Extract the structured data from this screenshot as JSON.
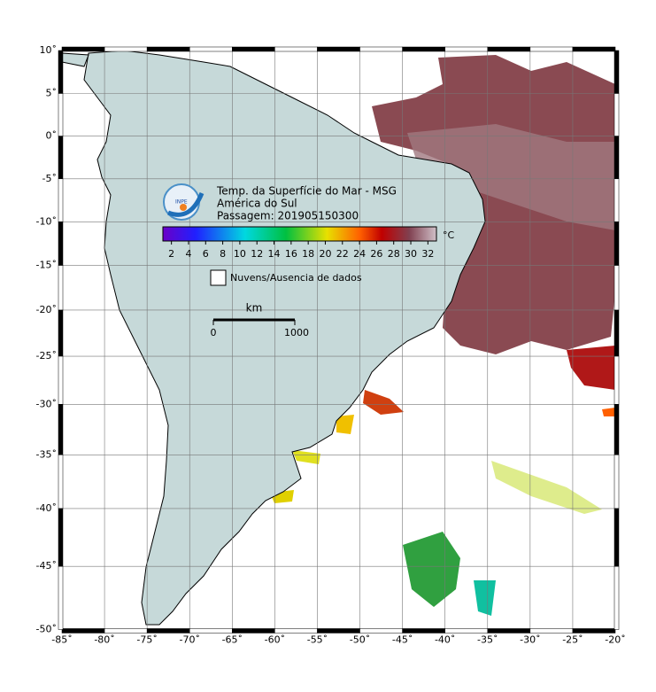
{
  "map": {
    "lonlim": [
      -85,
      -20
    ],
    "latlim": [
      -50,
      10
    ],
    "grid": true,
    "lonticks": [
      {
        "value": -85,
        "label": "-85˚"
      },
      {
        "value": -80,
        "label": "-80˚"
      },
      {
        "value": -75,
        "label": "-75˚"
      },
      {
        "value": -70,
        "label": "-70˚"
      },
      {
        "value": -65,
        "label": "-65˚"
      },
      {
        "value": -60,
        "label": "-60˚"
      },
      {
        "value": -55,
        "label": "-55˚"
      },
      {
        "value": -50,
        "label": "-50˚"
      },
      {
        "value": -45,
        "label": "-45˚"
      },
      {
        "value": -40,
        "label": "-40˚"
      },
      {
        "value": -35,
        "label": "-35˚"
      },
      {
        "value": -30,
        "label": "-30˚"
      },
      {
        "value": -25,
        "label": "-25˚"
      },
      {
        "value": -20,
        "label": "-20˚"
      }
    ],
    "latticks": [
      {
        "value": 10,
        "label": "10˚"
      },
      {
        "value": 5,
        "label": "5˚"
      },
      {
        "value": 0,
        "label": "0˚"
      },
      {
        "value": -5,
        "label": "-5˚"
      },
      {
        "value": -10,
        "label": "-10˚"
      },
      {
        "value": -15,
        "label": "-15˚"
      },
      {
        "value": -20,
        "label": "-20˚"
      },
      {
        "value": -25,
        "label": "-25˚"
      },
      {
        "value": -30,
        "label": "-30˚"
      },
      {
        "value": -35,
        "label": "-35˚"
      },
      {
        "value": -40,
        "label": "-40˚"
      },
      {
        "value": -45,
        "label": "-45˚"
      },
      {
        "value": -50,
        "label": "-50˚"
      }
    ]
  },
  "header": {
    "title": "Temp. da Superfície do Mar - MSG",
    "region": "América do Sul",
    "pass": "Passagem: 201905150300",
    "logo": "INPE"
  },
  "colorbar": {
    "lim": [
      1,
      33
    ],
    "ticks": [
      2,
      4,
      6,
      8,
      10,
      12,
      14,
      16,
      18,
      20,
      22,
      24,
      26,
      28,
      30,
      32
    ],
    "unit": "°C"
  },
  "legend": {
    "no_data": "Nuvens/Ausencia de dados"
  },
  "scalebar": {
    "unit": "km",
    "start": "0",
    "end": "1000"
  }
}
